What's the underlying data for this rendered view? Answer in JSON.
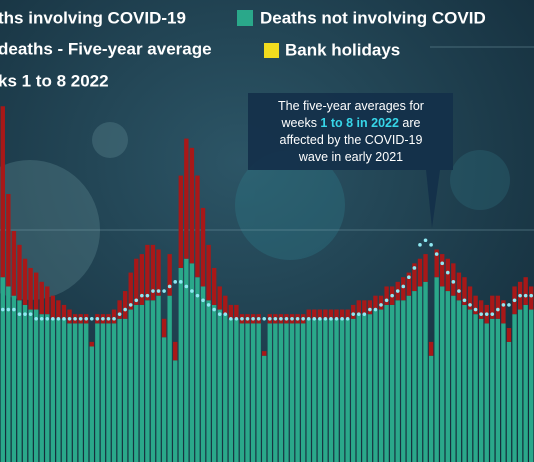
{
  "chart_data": {
    "type": "bar",
    "stacked": true,
    "ylim": [
      0,
      100
    ],
    "categories": [
      null,
      null,
      null,
      null,
      null,
      null,
      null,
      null,
      null,
      null,
      null,
      null,
      null,
      null,
      null,
      null,
      null,
      null,
      null,
      null,
      null,
      null,
      null,
      null,
      null,
      null,
      null,
      null,
      null,
      null,
      null,
      null,
      null,
      null,
      null,
      null,
      null,
      null,
      null,
      null,
      null,
      null,
      null,
      null,
      null,
      null,
      null,
      null,
      null,
      null,
      null,
      null,
      null,
      null,
      null,
      null,
      null,
      null,
      null,
      null,
      null,
      null,
      null,
      null,
      null,
      null,
      null,
      null,
      null,
      null,
      null,
      null,
      null,
      null,
      null,
      null,
      null,
      null,
      null,
      null,
      null,
      null,
      null,
      null,
      null,
      null,
      null,
      null,
      null,
      null,
      null,
      null,
      null,
      null,
      null,
      null
    ],
    "series": [
      {
        "name": "Deaths not involving COVID",
        "color": "#2aa88a",
        "type": "bar",
        "values": [
          40,
          38,
          36,
          35,
          34,
          33,
          33,
          32,
          32,
          31,
          31,
          31,
          30,
          30,
          30,
          30,
          25,
          30,
          30,
          30,
          30,
          31,
          31,
          33,
          34,
          34,
          35,
          35,
          36,
          27,
          36,
          22,
          42,
          44,
          43,
          40,
          38,
          35,
          34,
          33,
          32,
          31,
          31,
          30,
          30,
          30,
          30,
          23,
          30,
          30,
          30,
          30,
          30,
          30,
          30,
          31,
          31,
          31,
          31,
          31,
          31,
          31,
          31,
          31,
          32,
          32,
          32,
          33,
          33,
          34,
          34,
          35,
          35,
          36,
          37,
          38,
          39,
          23,
          40,
          38,
          37,
          36,
          35,
          34,
          33,
          32,
          31,
          30,
          31,
          31,
          30,
          26,
          32,
          33,
          34,
          33
        ]
      },
      {
        "name": "ths involving COVID-19",
        "color": "#a81818",
        "type": "bar",
        "values": [
          37,
          20,
          14,
          12,
          10,
          9,
          8,
          7,
          6,
          5,
          4,
          3,
          3,
          2,
          2,
          2,
          1,
          2,
          2,
          2,
          3,
          4,
          6,
          8,
          10,
          11,
          12,
          12,
          10,
          4,
          9,
          4,
          20,
          26,
          25,
          22,
          17,
          12,
          8,
          5,
          4,
          3,
          3,
          2,
          2,
          2,
          2,
          1,
          2,
          2,
          2,
          2,
          2,
          2,
          2,
          2,
          2,
          2,
          2,
          2,
          2,
          2,
          2,
          3,
          3,
          3,
          3,
          3,
          3,
          4,
          4,
          4,
          5,
          5,
          6,
          6,
          6,
          3,
          6,
          7,
          7,
          7,
          6,
          6,
          5,
          4,
          4,
          4,
          5,
          5,
          5,
          3,
          6,
          6,
          6,
          5
        ]
      },
      {
        "name": "deaths - Five-year average",
        "color": "#8fe9f2",
        "type": "dots",
        "values": [
          33,
          33,
          33,
          32,
          32,
          32,
          31,
          31,
          31,
          31,
          31,
          31,
          31,
          31,
          31,
          31,
          31,
          31,
          31,
          31,
          31,
          32,
          33,
          34,
          35,
          36,
          36,
          37,
          37,
          37,
          38,
          39,
          39,
          38,
          37,
          36,
          35,
          34,
          33,
          32,
          32,
          31,
          31,
          31,
          31,
          31,
          31,
          31,
          31,
          31,
          31,
          31,
          31,
          31,
          31,
          31,
          31,
          31,
          31,
          31,
          31,
          31,
          31,
          32,
          32,
          32,
          33,
          33,
          34,
          35,
          36,
          37,
          38,
          40,
          42,
          47,
          48,
          47,
          45,
          43,
          41,
          39,
          37,
          35,
          34,
          33,
          32,
          32,
          32,
          33,
          34,
          34,
          35,
          36,
          36,
          36
        ]
      }
    ],
    "legend_note": "ks 1 to 8 2022",
    "bank_holidays": {
      "name": "Bank holidays",
      "color": "#f2dc1e"
    },
    "annotation": {
      "line1": "The five-year averages for",
      "line2": [
        "weeks ",
        "1 to 8 in 2022",
        " are"
      ],
      "line3": "affected by the COVID-19",
      "line4": "wave in early 2021"
    }
  }
}
